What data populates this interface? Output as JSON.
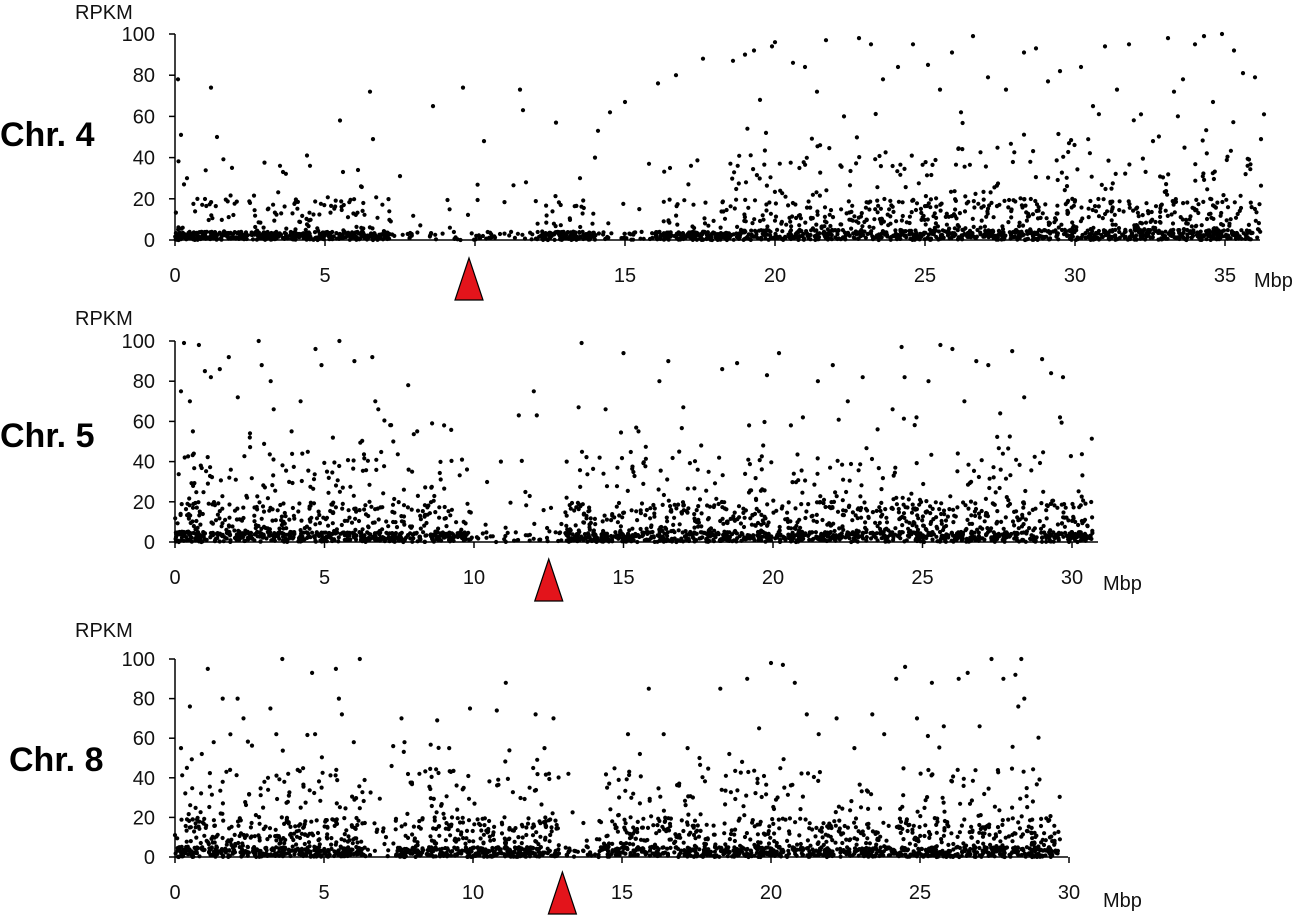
{
  "chart_data": [
    {
      "type": "scatter",
      "panel_label": "Chr. 4",
      "ylabel": "RPKM",
      "xlabel": "Mbp",
      "ylim": [
        0,
        100
      ],
      "xlim": [
        0,
        36.5
      ],
      "yticks": [
        0,
        20,
        40,
        60,
        80,
        100
      ],
      "xticks": [
        0,
        5,
        10,
        15,
        20,
        25,
        30,
        35
      ],
      "xtick_labels": [
        "0",
        "5",
        "",
        "15",
        "20",
        "25",
        "30",
        "35"
      ],
      "marker": {
        "type": "triangle",
        "x": 9.8,
        "color": "#e3141b"
      },
      "sparse_x": [
        [
          7.2,
          12
        ],
        [
          14,
          16
        ]
      ],
      "high_density_from": 18.5,
      "points": [
        [
          0.1,
          78
        ],
        [
          0.2,
          51
        ],
        [
          0.3,
          27
        ],
        [
          0.4,
          30
        ],
        [
          1.2,
          74
        ],
        [
          1.4,
          50
        ],
        [
          1.9,
          35
        ],
        [
          2.5,
          18
        ],
        [
          3.5,
          36
        ],
        [
          3.6,
          33
        ],
        [
          4.4,
          41
        ],
        [
          4.5,
          36
        ],
        [
          5.5,
          58
        ],
        [
          5.6,
          33
        ],
        [
          6.1,
          34
        ],
        [
          6.2,
          26
        ],
        [
          6.5,
          72
        ],
        [
          6.6,
          49
        ],
        [
          7.5,
          31
        ],
        [
          8.6,
          65
        ],
        [
          9.6,
          74
        ],
        [
          10.3,
          48
        ],
        [
          11.5,
          73
        ],
        [
          11.6,
          63
        ],
        [
          11.7,
          28
        ],
        [
          12.7,
          57
        ],
        [
          13.5,
          30
        ],
        [
          14.0,
          40
        ],
        [
          14.1,
          53
        ],
        [
          14.5,
          62
        ],
        [
          15.0,
          67
        ],
        [
          15.8,
          37
        ],
        [
          16.1,
          76
        ],
        [
          16.7,
          80
        ],
        [
          17.2,
          36
        ],
        [
          17.6,
          88
        ],
        [
          18.6,
          87
        ],
        [
          19.0,
          90
        ],
        [
          19.3,
          92
        ],
        [
          19.5,
          68
        ],
        [
          19.7,
          52
        ],
        [
          19.9,
          94
        ],
        [
          20.0,
          96
        ],
        [
          20.6,
          86
        ],
        [
          21.0,
          84
        ],
        [
          21.4,
          72
        ],
        [
          21.7,
          97
        ],
        [
          22.3,
          60
        ],
        [
          22.8,
          98
        ],
        [
          23.2,
          95
        ],
        [
          23.6,
          78
        ],
        [
          24.1,
          84
        ],
        [
          24.6,
          95
        ],
        [
          25.1,
          85
        ],
        [
          25.5,
          73
        ],
        [
          25.9,
          91
        ],
        [
          26.2,
          62
        ],
        [
          26.6,
          99
        ],
        [
          27.1,
          79
        ],
        [
          27.7,
          73
        ],
        [
          28.3,
          91
        ],
        [
          28.7,
          93
        ],
        [
          29.1,
          77
        ],
        [
          29.5,
          82
        ],
        [
          29.8,
          47
        ],
        [
          30.2,
          84
        ],
        [
          30.6,
          65
        ],
        [
          31.0,
          94
        ],
        [
          31.4,
          73
        ],
        [
          31.8,
          95
        ],
        [
          32.2,
          61
        ],
        [
          32.6,
          48
        ],
        [
          33.1,
          98
        ],
        [
          33.3,
          72
        ],
        [
          33.6,
          78
        ],
        [
          34.0,
          95
        ],
        [
          34.3,
          99
        ],
        [
          34.6,
          67
        ],
        [
          34.9,
          100
        ],
        [
          35.3,
          92
        ],
        [
          35.6,
          81
        ],
        [
          36.0,
          79
        ],
        [
          36.2,
          49
        ],
        [
          36.3,
          61
        ]
      ]
    },
    {
      "type": "scatter",
      "panel_label": "Chr. 5",
      "ylabel": "RPKM",
      "xlabel": "Mbp",
      "ylim": [
        0,
        100
      ],
      "xlim": [
        0,
        31
      ],
      "yticks": [
        0,
        20,
        40,
        60,
        80,
        100
      ],
      "xticks": [
        0,
        5,
        10,
        15,
        20,
        25,
        30
      ],
      "xtick_labels": [
        "0",
        "5",
        "10",
        "15",
        "20",
        "25",
        "30"
      ],
      "marker": {
        "type": "triangle",
        "x": 12.5,
        "color": "#e3141b"
      },
      "sparse_x": [
        [
          9.9,
          13
        ]
      ],
      "high_density_from": 0,
      "points": [
        [
          0.2,
          75
        ],
        [
          0.3,
          99
        ],
        [
          0.5,
          70
        ],
        [
          0.6,
          55
        ],
        [
          0.8,
          98
        ],
        [
          1.0,
          85
        ],
        [
          1.2,
          82
        ],
        [
          1.5,
          86
        ],
        [
          1.8,
          92
        ],
        [
          2.1,
          72
        ],
        [
          2.5,
          52
        ],
        [
          2.8,
          100
        ],
        [
          2.9,
          88
        ],
        [
          3.2,
          80
        ],
        [
          3.3,
          66
        ],
        [
          3.9,
          55
        ],
        [
          4.2,
          70
        ],
        [
          4.7,
          96
        ],
        [
          4.9,
          88
        ],
        [
          5.5,
          100
        ],
        [
          6.0,
          90
        ],
        [
          6.6,
          92
        ],
        [
          6.7,
          70
        ],
        [
          6.8,
          66
        ],
        [
          7.3,
          50
        ],
        [
          7.8,
          78
        ],
        [
          8.1,
          55
        ],
        [
          8.6,
          59
        ],
        [
          9.0,
          58
        ],
        [
          9.6,
          41
        ],
        [
          10.9,
          40
        ],
        [
          11.5,
          63
        ],
        [
          12.0,
          75
        ],
        [
          12.1,
          63
        ],
        [
          13.1,
          40
        ],
        [
          13.5,
          67
        ],
        [
          13.6,
          99
        ],
        [
          14.2,
          42
        ],
        [
          14.4,
          66
        ],
        [
          15.0,
          94
        ],
        [
          15.5,
          55
        ],
        [
          16.2,
          80
        ],
        [
          16.5,
          90
        ],
        [
          17.0,
          67
        ],
        [
          17.6,
          48
        ],
        [
          18.3,
          86
        ],
        [
          18.8,
          89
        ],
        [
          19.2,
          58
        ],
        [
          19.8,
          83
        ],
        [
          20.2,
          94
        ],
        [
          20.6,
          58
        ],
        [
          21.0,
          62
        ],
        [
          21.5,
          80
        ],
        [
          22.0,
          88
        ],
        [
          22.5,
          70
        ],
        [
          23.0,
          82
        ],
        [
          23.5,
          56
        ],
        [
          24.0,
          66
        ],
        [
          24.3,
          97
        ],
        [
          24.4,
          82
        ],
        [
          24.8,
          62
        ],
        [
          25.2,
          80
        ],
        [
          25.6,
          98
        ],
        [
          26.0,
          96
        ],
        [
          26.4,
          70
        ],
        [
          26.8,
          90
        ],
        [
          27.2,
          88
        ],
        [
          27.6,
          64
        ],
        [
          28.0,
          95
        ],
        [
          28.4,
          72
        ],
        [
          29.0,
          91
        ],
        [
          29.3,
          84
        ],
        [
          29.6,
          62
        ],
        [
          29.7,
          82
        ]
      ]
    },
    {
      "type": "scatter",
      "panel_label": "Chr. 8",
      "ylabel": "RPKM",
      "xlabel": "Mbp",
      "ylim": [
        0,
        100
      ],
      "xlim": [
        0,
        30
      ],
      "yticks": [
        0,
        20,
        40,
        60,
        80,
        100
      ],
      "xticks": [
        0,
        5,
        10,
        15,
        20,
        25,
        30
      ],
      "xtick_labels": [
        "0",
        "5",
        "10",
        "15",
        "20",
        "25",
        "30"
      ],
      "marker": {
        "type": "triangle",
        "x": 13.0,
        "color": "#e3141b"
      },
      "sparse_x": [
        [
          6.4,
          7.4
        ],
        [
          12.9,
          14.2
        ]
      ],
      "high_density_from": 0,
      "points": [
        [
          0.2,
          55
        ],
        [
          0.4,
          45
        ],
        [
          0.5,
          76
        ],
        [
          0.9,
          52
        ],
        [
          1.1,
          95
        ],
        [
          1.3,
          58
        ],
        [
          1.6,
          38
        ],
        [
          1.6,
          80
        ],
        [
          2.1,
          80
        ],
        [
          2.3,
          70
        ],
        [
          3.0,
          38
        ],
        [
          3.2,
          75
        ],
        [
          3.4,
          62
        ],
        [
          3.6,
          100
        ],
        [
          3.8,
          42
        ],
        [
          4.6,
          93
        ],
        [
          4.7,
          62
        ],
        [
          5.4,
          95
        ],
        [
          5.5,
          80
        ],
        [
          5.6,
          72
        ],
        [
          6.0,
          58
        ],
        [
          6.2,
          100
        ],
        [
          7.6,
          70
        ],
        [
          7.7,
          58
        ],
        [
          8.2,
          42
        ],
        [
          8.8,
          69
        ],
        [
          9.2,
          55
        ],
        [
          9.9,
          75
        ],
        [
          10.8,
          74
        ],
        [
          11.1,
          88
        ],
        [
          11.9,
          35
        ],
        [
          12.1,
          72
        ],
        [
          12.4,
          55
        ],
        [
          12.7,
          70
        ],
        [
          13.2,
          42
        ],
        [
          14.5,
          35
        ],
        [
          15.2,
          62
        ],
        [
          15.6,
          52
        ],
        [
          15.9,
          85
        ],
        [
          16.4,
          62
        ],
        [
          17.2,
          55
        ],
        [
          17.6,
          50
        ],
        [
          18.3,
          85
        ],
        [
          18.6,
          52
        ],
        [
          19.2,
          90
        ],
        [
          19.6,
          65
        ],
        [
          20.0,
          98
        ],
        [
          20.4,
          97
        ],
        [
          20.8,
          88
        ],
        [
          21.2,
          72
        ],
        [
          21.6,
          62
        ],
        [
          22.2,
          70
        ],
        [
          22.8,
          55
        ],
        [
          23.4,
          72
        ],
        [
          23.8,
          62
        ],
        [
          24.2,
          90
        ],
        [
          24.5,
          96
        ],
        [
          24.9,
          70
        ],
        [
          25.4,
          88
        ],
        [
          25.8,
          66
        ],
        [
          26.3,
          90
        ],
        [
          26.6,
          93
        ],
        [
          27.0,
          66
        ],
        [
          27.4,
          100
        ],
        [
          27.8,
          90
        ],
        [
          28.2,
          92
        ],
        [
          28.3,
          76
        ],
        [
          28.4,
          100
        ],
        [
          28.5,
          80
        ]
      ]
    }
  ]
}
